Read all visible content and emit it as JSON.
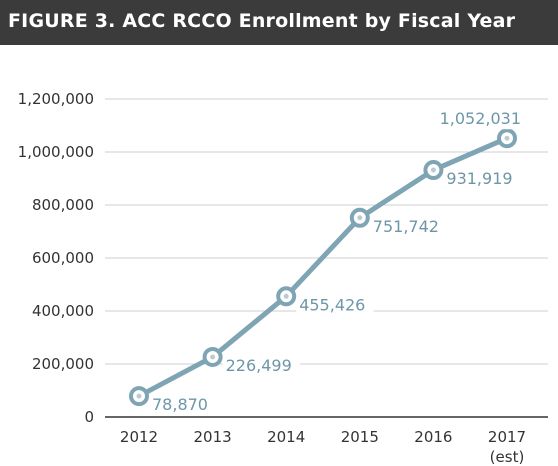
{
  "header": {
    "title": "FIGURE 3. ACC RCCO Enrollment by Fiscal Year"
  },
  "chart_data": {
    "type": "line",
    "title": "FIGURE 3. ACC RCCO Enrollment by Fiscal Year",
    "xlabel": "",
    "ylabel": "",
    "categories": [
      "2012",
      "2013",
      "2014",
      "2015",
      "2016",
      "2017"
    ],
    "category_sublabels": [
      "",
      "",
      "",
      "",
      "",
      "(est)"
    ],
    "values": [
      78870,
      226499,
      455426,
      751742,
      931919,
      1052031
    ],
    "value_labels": [
      "78,870",
      "226,499",
      "455,426",
      "751,742",
      "931,919",
      "1,052,031"
    ],
    "yticks": [
      0,
      200000,
      400000,
      600000,
      800000,
      1000000,
      1200000
    ],
    "ytick_labels": [
      "0",
      "200,000",
      "400,000",
      "600,000",
      "800,000",
      "1,000,000",
      "1,200,000"
    ],
    "ylim": [
      0,
      1200000
    ],
    "grid": true,
    "colors": {
      "line": "#7fa5b5",
      "marker_fill": "#ffffff",
      "label": "#6d97a8",
      "grid": "#cfcfcf",
      "axis": "#333333",
      "header_bg": "#3b3b3b"
    }
  }
}
